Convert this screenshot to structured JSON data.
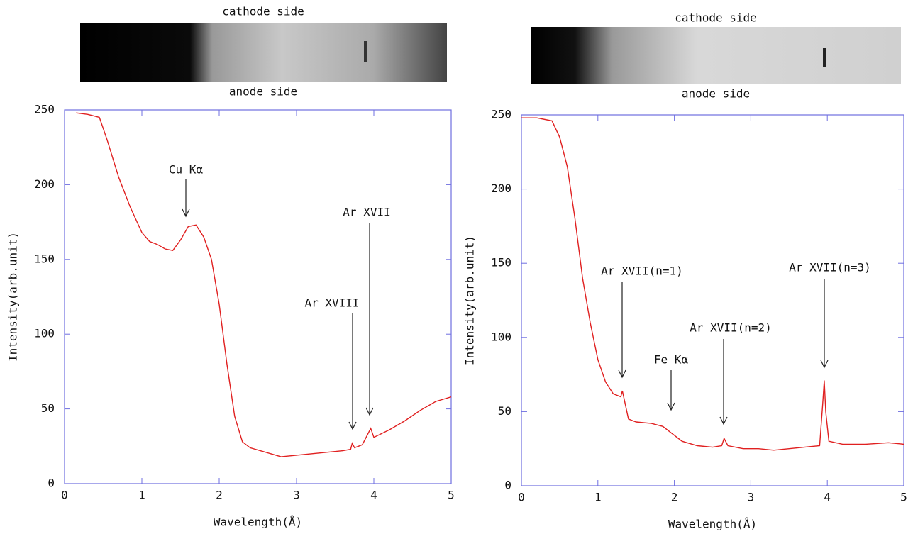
{
  "chart_data": [
    {
      "type": "line",
      "top_label": "cathode side",
      "bottom_label": "anode side",
      "xlabel": "Wavelength(Å)",
      "ylabel": "Intensity(arb.unit)",
      "xlim": [
        0,
        5
      ],
      "ylim": [
        0,
        250
      ],
      "xticks": [
        0,
        1,
        2,
        3,
        4,
        5
      ],
      "yticks": [
        0,
        50,
        100,
        150,
        200,
        250
      ],
      "color": "#e02020",
      "x": [
        0.15,
        0.3,
        0.45,
        0.55,
        0.7,
        0.85,
        1.0,
        1.1,
        1.2,
        1.3,
        1.4,
        1.5,
        1.6,
        1.7,
        1.8,
        1.9,
        2.0,
        2.1,
        2.2,
        2.3,
        2.4,
        2.6,
        2.8,
        3.0,
        3.2,
        3.4,
        3.6,
        3.7,
        3.72,
        3.75,
        3.85,
        3.93,
        3.96,
        4.0,
        4.2,
        4.4,
        4.6,
        4.8,
        5.0
      ],
      "values": [
        248,
        247,
        245,
        230,
        205,
        185,
        168,
        162,
        160,
        157,
        156,
        163,
        172,
        173,
        165,
        150,
        120,
        80,
        45,
        28,
        24,
        21,
        18,
        19,
        20,
        21,
        22,
        23,
        27,
        24,
        26,
        34,
        37,
        31,
        36,
        42,
        49,
        55,
        58
      ],
      "annotations": [
        {
          "text": "Cu Kα"
        },
        {
          "text": "Ar XVIII"
        },
        {
          "text": "Ar XVII"
        }
      ]
    },
    {
      "type": "line",
      "top_label": "cathode side",
      "bottom_label": "anode side",
      "xlabel": "Wavelength(Å)",
      "ylabel": "Intensity(arb.unit)",
      "xlim": [
        0,
        5
      ],
      "ylim": [
        0,
        250
      ],
      "xticks": [
        0,
        1,
        2,
        3,
        4,
        5
      ],
      "yticks": [
        0,
        50,
        100,
        150,
        200,
        250
      ],
      "color": "#e02020",
      "x": [
        0,
        0.2,
        0.4,
        0.5,
        0.6,
        0.7,
        0.8,
        0.9,
        1.0,
        1.1,
        1.2,
        1.3,
        1.32,
        1.35,
        1.4,
        1.5,
        1.7,
        1.85,
        1.95,
        2.1,
        2.3,
        2.5,
        2.62,
        2.65,
        2.7,
        2.9,
        3.1,
        3.3,
        3.5,
        3.7,
        3.9,
        3.94,
        3.96,
        3.98,
        4.02,
        4.2,
        4.5,
        4.8,
        5.0
      ],
      "values": [
        248,
        248,
        246,
        235,
        215,
        180,
        140,
        110,
        85,
        70,
        62,
        60,
        64,
        57,
        45,
        43,
        42,
        40,
        36,
        30,
        27,
        26,
        27,
        32,
        27,
        25,
        25,
        24,
        25,
        26,
        27,
        55,
        71,
        50,
        30,
        28,
        28,
        29,
        28
      ],
      "annotations": [
        {
          "text": "Ar XVII(n=1)"
        },
        {
          "text": "Fe Kα"
        },
        {
          "text": "Ar XVII(n=2)"
        },
        {
          "text": "Ar XVII(n=3)"
        }
      ]
    }
  ]
}
